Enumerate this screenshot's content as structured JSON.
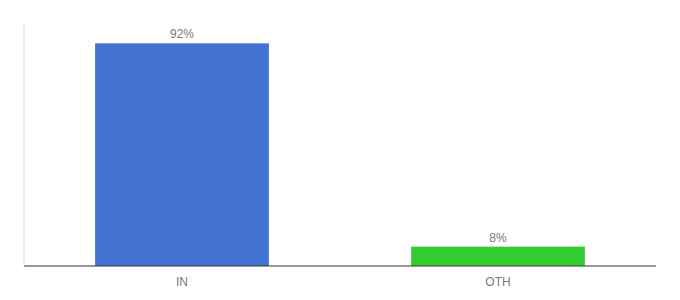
{
  "chart_data": {
    "type": "bar",
    "categories": [
      "IN",
      "OTH"
    ],
    "values": [
      92,
      8
    ],
    "value_labels": [
      "92%",
      "8%"
    ],
    "colors": [
      "#4472D3",
      "#33CC33"
    ],
    "ylim": [
      0,
      100
    ],
    "grid": false,
    "data_labels": true,
    "tick_labels": "x"
  }
}
